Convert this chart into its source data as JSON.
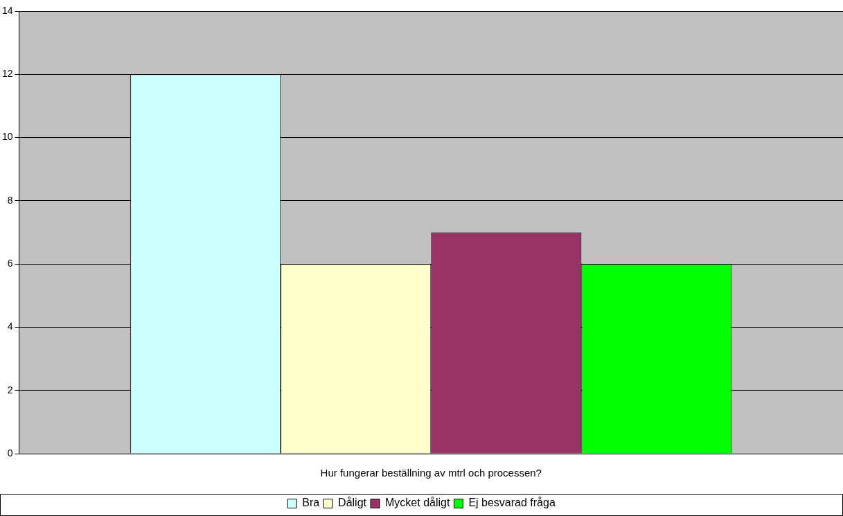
{
  "chart_data": {
    "type": "bar",
    "categories": [
      "Hur fungerar beställning av mtrl och processen?"
    ],
    "series": [
      {
        "name": "Bra",
        "color": "#ccffff",
        "values": [
          12
        ]
      },
      {
        "name": "Dåligt",
        "color": "#ffffcc",
        "values": [
          6
        ]
      },
      {
        "name": "Mycket dåligt",
        "color": "#993366",
        "values": [
          7
        ]
      },
      {
        "name": "Ej besvarad fråga",
        "color": "#00ff00",
        "values": [
          6
        ]
      }
    ],
    "ylim": [
      0,
      14
    ],
    "yticks": [
      0,
      2,
      4,
      6,
      8,
      10,
      12,
      14
    ],
    "grid": "y",
    "legend": "bottom"
  }
}
